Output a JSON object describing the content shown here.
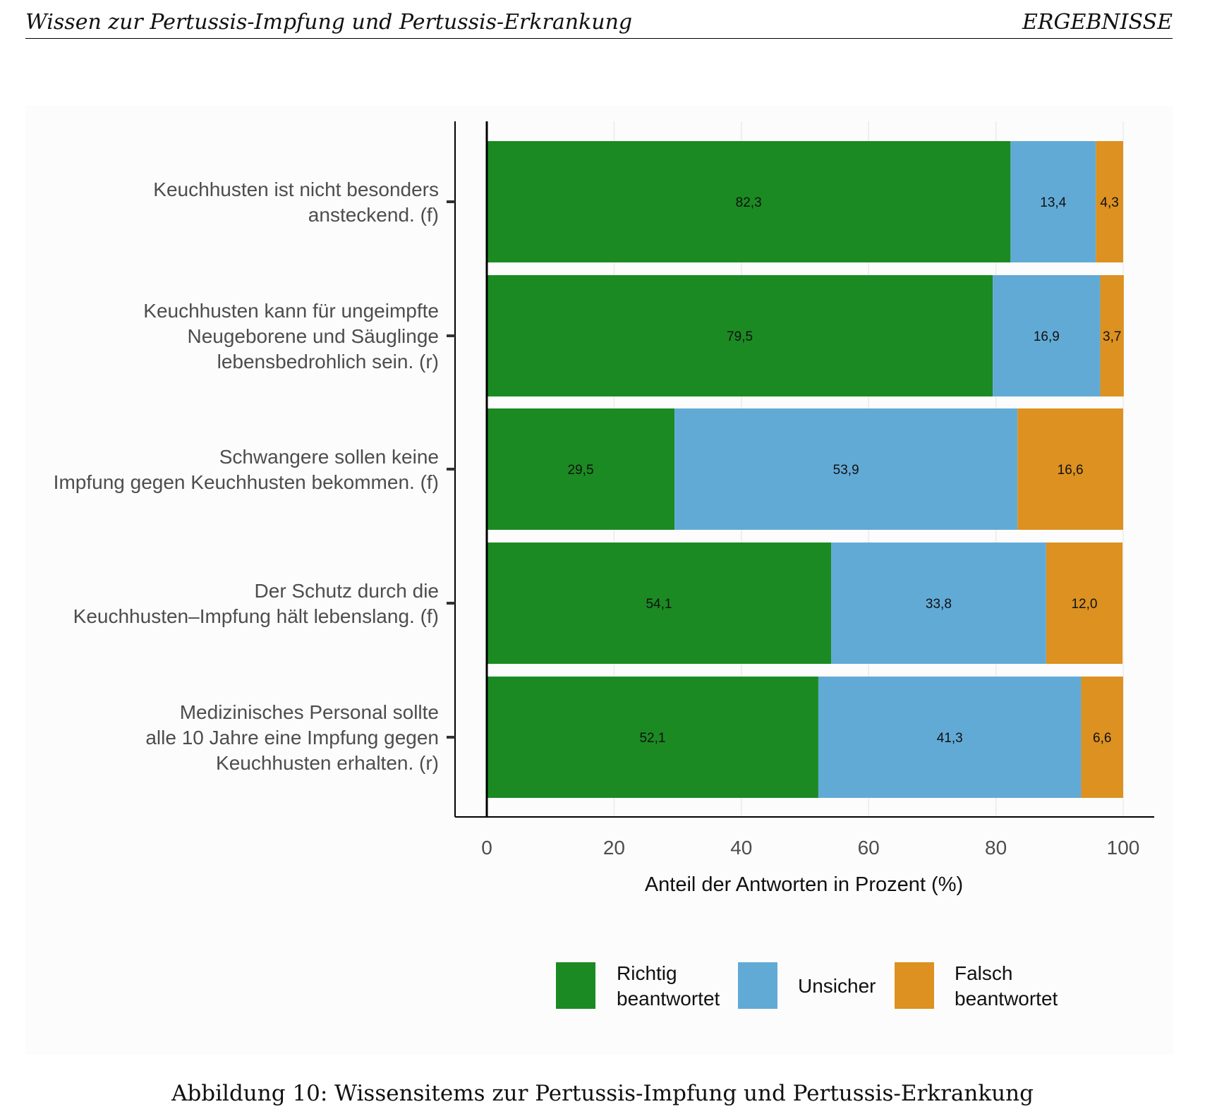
{
  "header": {
    "left": "Wissen zur Pertussis-Impfung und Pertussis-Erkrankung",
    "right": "ERGEBNISSE"
  },
  "caption": "Abbildung 10: Wissensitems zur Pertussis-Impfung und Pertussis-Erkrankung",
  "chart_data": {
    "type": "bar",
    "orientation": "horizontal",
    "stacked": true,
    "categories": [
      [
        "Keuchhusten ist nicht besonders",
        "ansteckend. (f)"
      ],
      [
        "Keuchhusten kann für ungeimpfte",
        "Neugeborene und Säuglinge",
        "lebensbedrohlich sein. (r)"
      ],
      [
        "Schwangere sollen keine",
        "Impfung gegen Keuchhusten bekommen. (f)"
      ],
      [
        "Der Schutz durch die",
        "Keuchhusten–Impfung hält lebenslang. (f)"
      ],
      [
        "Medizinisches Personal sollte",
        "alle 10 Jahre eine Impfung gegen",
        "Keuchhusten erhalten. (r)"
      ]
    ],
    "series": [
      {
        "name": "Richtig beantwortet",
        "legend_lines": [
          "Richtig",
          "beantwortet"
        ],
        "color": "#1b8a22",
        "values": [
          82.3,
          79.5,
          29.5,
          54.1,
          52.1
        ],
        "labels": [
          "82,3",
          "79,5",
          "29,5",
          "54,1",
          "52,1"
        ]
      },
      {
        "name": "Unsicher",
        "legend_lines": [
          "Unsicher"
        ],
        "color": "#62aad6",
        "values": [
          13.4,
          16.9,
          53.9,
          33.8,
          41.3
        ],
        "labels": [
          "13,4",
          "16,9",
          "53,9",
          "33,8",
          "41,3"
        ]
      },
      {
        "name": "Falsch beantwortet",
        "legend_lines": [
          "Falsch",
          "beantwortet"
        ],
        "color": "#dc9120",
        "values": [
          4.3,
          3.7,
          16.6,
          12.0,
          6.6
        ],
        "labels": [
          "4,3",
          "3,7",
          "16,6",
          "12,0",
          "6,6"
        ]
      }
    ],
    "xlabel": "Anteil der Antworten in Prozent (%)",
    "xlim": [
      0,
      100
    ],
    "xticks": [
      0,
      20,
      40,
      60,
      80,
      100
    ],
    "grid": true,
    "legend_position": "bottom"
  }
}
